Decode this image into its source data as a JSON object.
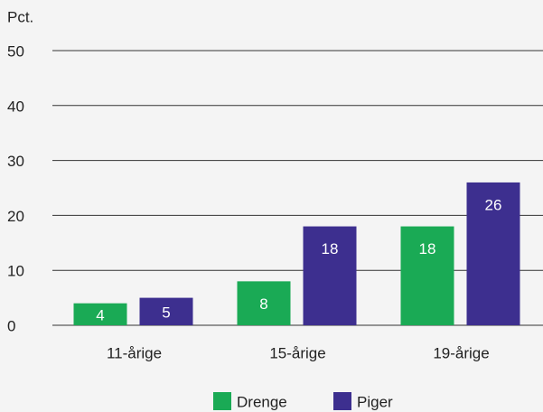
{
  "chart_data": {
    "type": "bar",
    "y_axis_label": "Pct.",
    "categories": [
      "11-årige",
      "15-årige",
      "19-årige"
    ],
    "series": [
      {
        "name": "Drenge",
        "color": "#1aaa55",
        "values": [
          4,
          8,
          18
        ]
      },
      {
        "name": "Piger",
        "color": "#3d2f8f",
        "values": [
          5,
          18,
          26
        ]
      }
    ],
    "ylim": [
      0,
      50
    ],
    "yticks": [
      0,
      10,
      20,
      30,
      40,
      50
    ],
    "grid": true,
    "legend": "bottom"
  }
}
